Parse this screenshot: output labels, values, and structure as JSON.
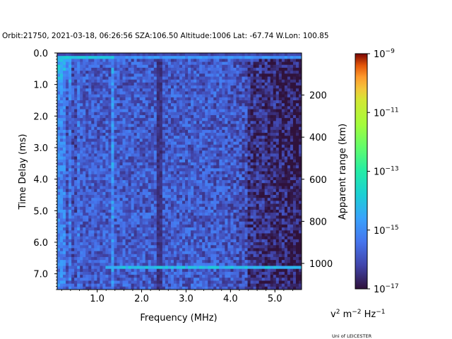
{
  "chart_data": {
    "type": "heatmap",
    "title": "Orbit:21750, 2021-03-18, 06:26:56 SZA:106.50 Altitude:1006 Lat: -67.74 W.Lon: 100.85",
    "xlabel": "Frequency (MHz)",
    "ylabel": "Time Delay (ms)",
    "y2label": "Apparent range (km)",
    "xlim": [
      0.1,
      5.6
    ],
    "ylim": [
      7.5,
      0.0
    ],
    "x_ticks": [
      1.0,
      2.0,
      3.0,
      4.0,
      5.0
    ],
    "x_tick_labels": [
      "1.0",
      "2.0",
      "3.0",
      "4.0",
      "5.0"
    ],
    "y_ticks": [
      0.0,
      1.0,
      2.0,
      3.0,
      4.0,
      5.0,
      6.0,
      7.0
    ],
    "y_tick_labels": [
      "0.0",
      "1.0",
      "2.0",
      "3.0",
      "4.0",
      "5.0",
      "6.0",
      "7.0"
    ],
    "y2_ticks_km": [
      200,
      400,
      600,
      800,
      1000
    ],
    "y2_tick_labels": [
      "200",
      "400",
      "600",
      "800",
      "1000"
    ],
    "y2_km_per_ms": 149.9,
    "colorbar": {
      "label": "v² m⁻² Hz⁻¹",
      "label_base": "v",
      "label_exp1": "2",
      "label_mid": " m",
      "label_exp2": "−2",
      "label_tail": " Hz",
      "label_exp3": "−1",
      "scale": "log",
      "min": 1e-17,
      "max": 1e-09,
      "tick_exponents": [
        -9,
        -11,
        -13,
        -15,
        -17
      ],
      "tick_base": "10",
      "tick_exp_labels": [
        "−9",
        "−11",
        "−13",
        "−15",
        "−17"
      ],
      "colormap": "turbo"
    },
    "features": {
      "surface_reflection_delay_ms": 6.8,
      "dark_frequency_band_mhz": 2.4,
      "bright_vertical_line_mhz": 1.35,
      "top_band_delay_ms": 0.15,
      "median_log_power": -15.8,
      "high_freq_log_power": -16.6
    }
  },
  "footer": {
    "credit": "Uni of LEICESTER"
  }
}
